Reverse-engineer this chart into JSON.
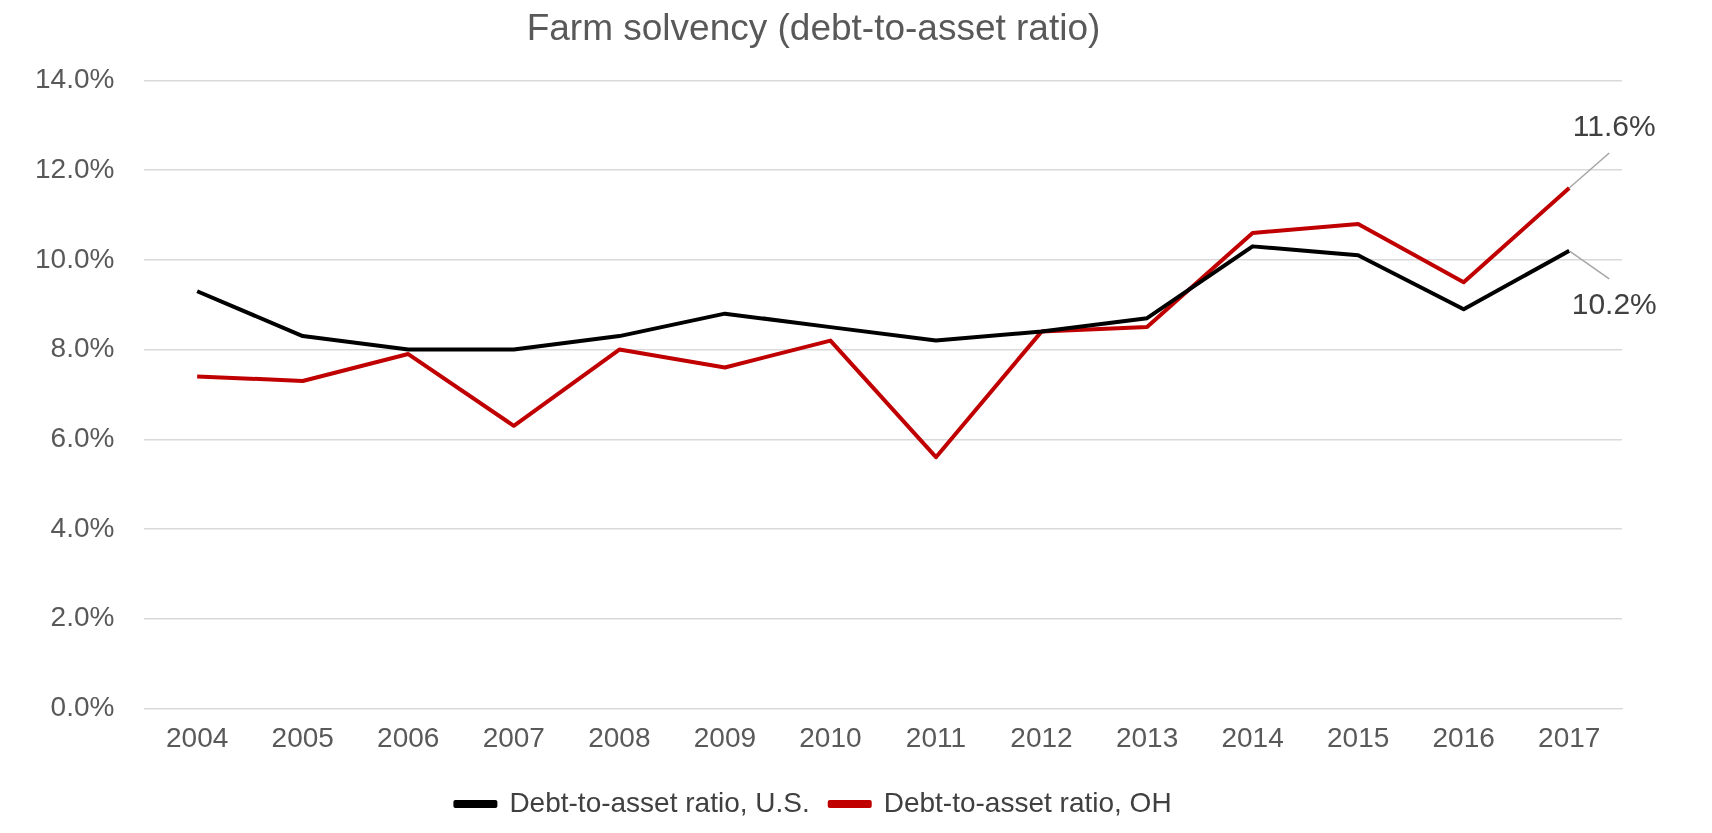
{
  "chart_data": {
    "type": "line",
    "title": "Farm solvency (debt-to-asset ratio)",
    "categories": [
      "2004",
      "2005",
      "2006",
      "2007",
      "2008",
      "2009",
      "2010",
      "2011",
      "2012",
      "2013",
      "2014",
      "2015",
      "2016",
      "2017"
    ],
    "series": [
      {
        "name": "Debt-to-asset ratio, U.S.",
        "color": "#000000",
        "values": [
          9.3,
          8.3,
          8.0,
          8.0,
          8.3,
          8.8,
          8.5,
          8.2,
          8.4,
          8.7,
          10.3,
          10.1,
          8.9,
          10.2
        ],
        "value_labels": [
          null,
          null,
          null,
          null,
          null,
          null,
          null,
          null,
          null,
          null,
          null,
          null,
          null,
          "10.2%"
        ]
      },
      {
        "name": "Debt-to-asset ratio, OH",
        "color": "#c00000",
        "values": [
          7.4,
          7.3,
          7.9,
          6.3,
          8.0,
          7.6,
          8.2,
          5.6,
          8.4,
          8.5,
          10.6,
          10.8,
          9.5,
          11.6
        ],
        "value_labels": [
          null,
          null,
          null,
          null,
          null,
          null,
          null,
          null,
          null,
          null,
          null,
          null,
          null,
          "11.6%"
        ]
      }
    ],
    "ylim": [
      0,
      14
    ],
    "yticks": [
      {
        "value": 0,
        "label": "0.0%"
      },
      {
        "value": 2,
        "label": "2.0%"
      },
      {
        "value": 4,
        "label": "4.0%"
      },
      {
        "value": 6,
        "label": "6.0%"
      },
      {
        "value": 8,
        "label": "8.0%"
      },
      {
        "value": 10,
        "label": "10.0%"
      },
      {
        "value": 12,
        "label": "12.0%"
      },
      {
        "value": 14,
        "label": "14.0%"
      }
    ],
    "grid": "y",
    "legend": "bottom",
    "marker": "none",
    "line_style": "solid"
  }
}
